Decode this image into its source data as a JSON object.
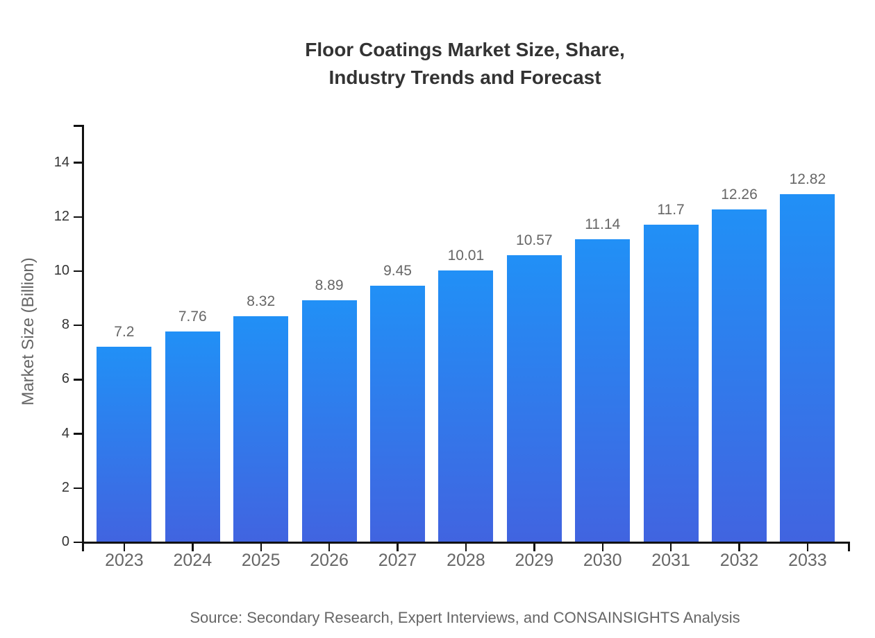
{
  "title": {
    "line1": "Floor Coatings Market Size, Share,",
    "line2": "Industry Trends and Forecast"
  },
  "source": "Source: Secondary Research, Expert Interviews, and CONSAINSIGHTS Analysis",
  "chart_data": {
    "type": "bar",
    "title": "Floor Coatings Market Size, Share, Industry Trends and Forecast",
    "categories": [
      "2023",
      "2024",
      "2025",
      "2026",
      "2027",
      "2028",
      "2029",
      "2030",
      "2031",
      "2032",
      "2033"
    ],
    "values": [
      7.2,
      7.76,
      8.32,
      8.89,
      9.45,
      10.01,
      10.57,
      11.14,
      11.7,
      12.26,
      12.82
    ],
    "value_labels": [
      "7.2",
      "7.76",
      "8.32",
      "8.89",
      "9.45",
      "10.01",
      "10.57",
      "11.14",
      "11.7",
      "12.26",
      "12.82"
    ],
    "xlabel": "",
    "ylabel": "Market Size (Billion)",
    "yticks": [
      0,
      2,
      4,
      6,
      8,
      10,
      12,
      14
    ],
    "ylim": [
      0,
      15.4
    ],
    "grid": false,
    "legend": "none",
    "bar_color_top": "#2190f6",
    "bar_color_bottom": "#4164e0"
  }
}
